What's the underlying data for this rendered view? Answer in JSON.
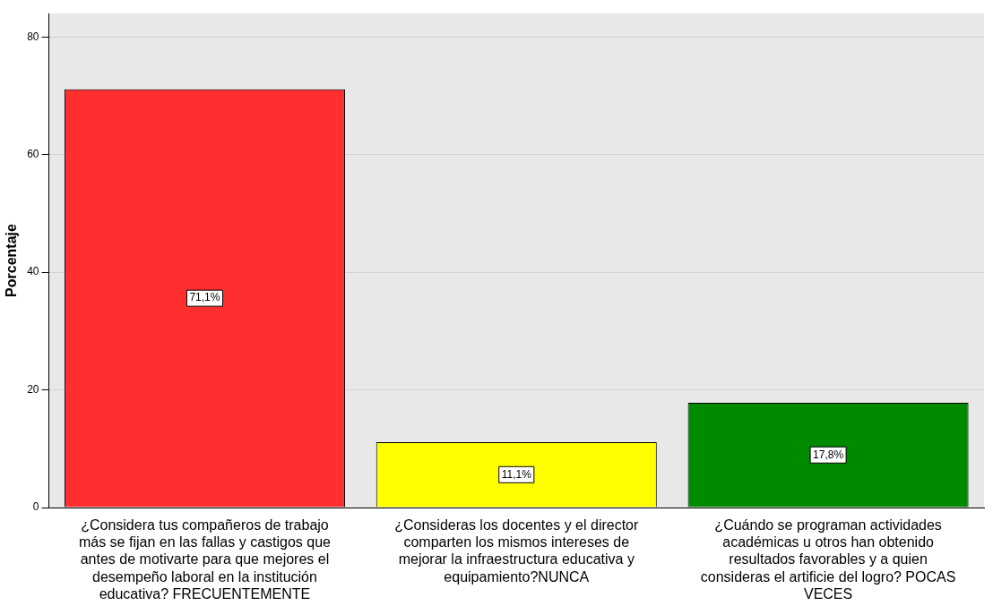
{
  "chart_data": {
    "type": "bar",
    "ylabel": "Porcentaje",
    "categories": [
      "¿Considera tus compañeros de trabajo más se fijan en las fallas y castigos que antes de motivarte para que mejores el desempeño laboral en la institución educativa? FRECUENTEMENTE",
      "¿Consideras los docentes y el director comparten los mismos intereses de mejorar la infraestructura educativa y equipamiento?NUNCA",
      "¿Cuándo se programan actividades académicas u otros han obtenido resultados favorables y a quien consideras el artificie del logro? POCAS VECES"
    ],
    "values": [
      71.1,
      11.1,
      17.8
    ],
    "colors": [
      "#ff2f2f",
      "#ffff00",
      "#008a00"
    ],
    "value_labels": [
      "71,1%",
      "11,1%",
      "17,8%"
    ],
    "ylim": [
      0,
      84
    ],
    "yticks": [
      0,
      20,
      40,
      60,
      80
    ],
    "grid": "y",
    "legend": false
  }
}
